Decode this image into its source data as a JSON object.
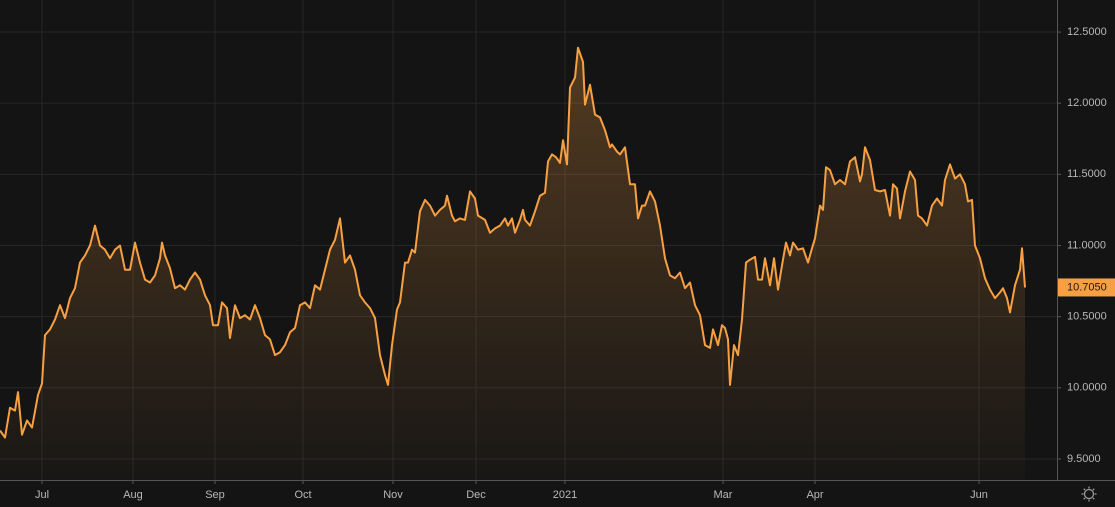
{
  "chart_data": {
    "type": "area",
    "color": "#f7a043",
    "background": "#141414",
    "grid": true,
    "x": [
      0,
      5,
      10,
      15,
      18,
      22,
      27,
      32,
      38,
      42,
      45,
      50,
      55,
      60,
      65,
      70,
      75,
      80,
      85,
      90,
      95,
      100,
      105,
      110,
      115,
      120,
      125,
      130,
      135,
      140,
      145,
      150,
      155,
      160,
      162,
      165,
      170,
      175,
      180,
      185,
      190,
      195,
      200,
      205,
      210,
      213,
      218,
      222,
      227,
      230,
      235,
      240,
      245,
      250,
      255,
      260,
      265,
      270,
      275,
      280,
      285,
      290,
      295,
      300,
      305,
      310,
      315,
      320,
      325,
      330,
      335,
      340,
      345,
      350,
      355,
      360,
      365,
      370,
      375,
      380,
      385,
      388,
      392,
      397,
      400,
      405,
      408,
      412,
      415,
      420,
      425,
      430,
      435,
      440,
      445,
      447,
      452,
      455,
      460,
      465,
      470,
      475,
      478,
      485,
      490,
      495,
      500,
      505,
      508,
      512,
      515,
      520,
      523,
      525,
      530,
      535,
      540,
      545,
      548,
      552,
      556,
      560,
      563,
      567,
      570,
      575,
      578,
      583,
      585,
      590,
      595,
      600,
      605,
      610,
      612,
      617,
      620,
      625,
      630,
      635,
      638,
      642,
      645,
      650,
      655,
      660,
      665,
      670,
      675,
      680,
      685,
      690,
      695,
      700,
      705,
      710,
      713,
      718,
      722,
      725,
      728,
      730,
      734,
      738,
      742,
      746,
      750,
      755,
      758,
      762,
      765,
      770,
      774,
      778,
      782,
      786,
      790,
      793,
      798,
      803,
      808,
      812,
      815,
      820,
      823,
      826,
      830,
      835,
      840,
      845,
      850,
      855,
      860,
      862,
      865,
      870,
      875,
      880,
      885,
      890,
      893,
      897,
      900,
      905,
      910,
      915,
      918,
      922,
      927,
      932,
      937,
      942,
      945,
      950,
      955,
      960,
      965,
      968,
      972,
      975,
      980,
      985,
      990,
      995,
      1000,
      1003,
      1007,
      1010,
      1015,
      1020,
      1022,
      1025
    ],
    "values": [
      9.7,
      9.65,
      9.86,
      9.84,
      9.97,
      9.67,
      9.77,
      9.72,
      9.95,
      10.03,
      10.37,
      10.41,
      10.48,
      10.58,
      10.49,
      10.63,
      10.7,
      10.88,
      10.93,
      11.0,
      11.14,
      11.0,
      10.97,
      10.91,
      10.97,
      11.0,
      10.83,
      10.83,
      11.02,
      10.88,
      10.76,
      10.74,
      10.79,
      10.91,
      11.02,
      10.93,
      10.84,
      10.7,
      10.72,
      10.69,
      10.76,
      10.81,
      10.76,
      10.65,
      10.58,
      10.44,
      10.44,
      10.6,
      10.56,
      10.35,
      10.58,
      10.49,
      10.51,
      10.48,
      10.58,
      10.49,
      10.37,
      10.34,
      10.23,
      10.25,
      10.3,
      10.39,
      10.42,
      10.58,
      10.6,
      10.56,
      10.72,
      10.69,
      10.83,
      10.97,
      11.04,
      11.19,
      10.88,
      10.93,
      10.83,
      10.65,
      10.6,
      10.56,
      10.49,
      10.23,
      10.09,
      10.02,
      10.3,
      10.55,
      10.6,
      10.88,
      10.88,
      10.97,
      10.95,
      11.24,
      11.32,
      11.28,
      11.21,
      11.25,
      11.28,
      11.35,
      11.21,
      11.17,
      11.19,
      11.18,
      11.38,
      11.33,
      11.21,
      11.18,
      11.09,
      11.12,
      11.14,
      11.19,
      11.14,
      11.19,
      11.09,
      11.18,
      11.25,
      11.18,
      11.14,
      11.24,
      11.35,
      11.37,
      11.59,
      11.64,
      11.62,
      11.58,
      11.74,
      11.57,
      12.11,
      12.18,
      12.39,
      12.29,
      11.99,
      12.13,
      11.92,
      11.9,
      11.81,
      11.69,
      11.71,
      11.66,
      11.64,
      11.69,
      11.43,
      11.43,
      11.19,
      11.28,
      11.28,
      11.38,
      11.31,
      11.14,
      10.91,
      10.79,
      10.77,
      10.81,
      10.7,
      10.74,
      10.58,
      10.51,
      10.3,
      10.28,
      10.41,
      10.3,
      10.44,
      10.42,
      10.34,
      10.02,
      10.3,
      10.23,
      10.48,
      10.88,
      10.9,
      10.92,
      10.76,
      10.76,
      10.91,
      10.72,
      10.91,
      10.69,
      10.86,
      11.02,
      10.93,
      11.02,
      10.97,
      10.98,
      10.88,
      10.98,
      11.05,
      11.28,
      11.25,
      11.55,
      11.53,
      11.43,
      11.46,
      11.43,
      11.59,
      11.62,
      11.45,
      11.5,
      11.69,
      11.6,
      11.39,
      11.38,
      11.39,
      11.21,
      11.43,
      11.4,
      11.19,
      11.38,
      11.52,
      11.46,
      11.21,
      11.19,
      11.14,
      11.28,
      11.33,
      11.28,
      11.46,
      11.57,
      11.47,
      11.5,
      11.43,
      11.31,
      11.32,
      11.0,
      10.91,
      10.77,
      10.69,
      10.63,
      10.67,
      10.7,
      10.63,
      10.53,
      10.72,
      10.83,
      10.98,
      10.705
    ],
    "last_price": {
      "value": 10.705,
      "label": "10.7050"
    },
    "xlim": [
      0,
      1057
    ],
    "xticks": [
      {
        "value": 42,
        "label": "Jul"
      },
      {
        "value": 133,
        "label": "Aug"
      },
      {
        "value": 215,
        "label": "Sep"
      },
      {
        "value": 303,
        "label": "Oct"
      },
      {
        "value": 393,
        "label": "Nov"
      },
      {
        "value": 476,
        "label": "Dec"
      },
      {
        "value": 565,
        "label": "2021"
      },
      {
        "value": 723,
        "label": "Mar"
      },
      {
        "value": 815,
        "label": "Apr"
      },
      {
        "value": 979,
        "label": "Jun"
      }
    ],
    "ylim": [
      9.352,
      12.725
    ],
    "yticks": [
      {
        "value": 9.5,
        "label": "9.5000"
      },
      {
        "value": 10,
        "label": "10.0000"
      },
      {
        "value": 10.5,
        "label": "10.5000"
      },
      {
        "value": 11,
        "label": "11.0000"
      },
      {
        "value": 11.5,
        "label": "11.5000"
      },
      {
        "value": 12,
        "label": "12.0000"
      },
      {
        "value": 12.5,
        "label": "12.5000"
      }
    ]
  }
}
